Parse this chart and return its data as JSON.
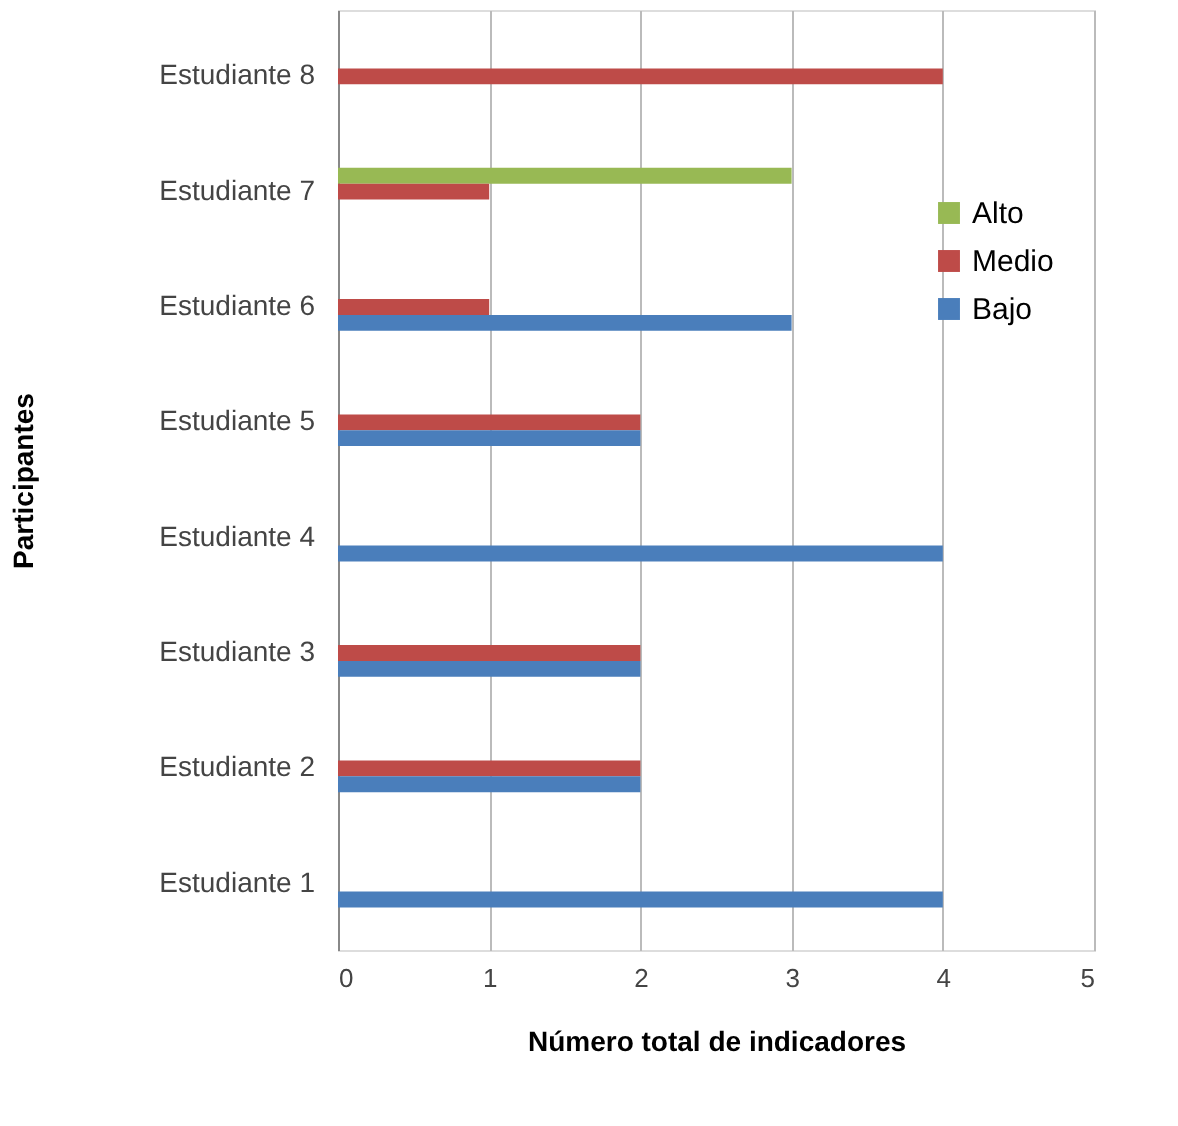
{
  "chart_data": {
    "type": "bar",
    "orientation": "horizontal",
    "xlabel": "Número total de indicadores",
    "ylabel": "Participantes",
    "categories": [
      "Estudiante 8",
      "Estudiante 7",
      "Estudiante 6",
      "Estudiante 5",
      "Estudiante 4",
      "Estudiante 3",
      "Estudiante 2",
      "Estudiante 1"
    ],
    "series": [
      {
        "name": "Alto",
        "color": "#98b954",
        "values": [
          null,
          3,
          null,
          null,
          null,
          null,
          null,
          null
        ]
      },
      {
        "name": "Medio",
        "color": "#be4b48",
        "values": [
          4,
          1,
          1,
          2,
          null,
          2,
          2,
          null
        ]
      },
      {
        "name": "Bajo",
        "color": "#4a7ebb",
        "values": [
          null,
          null,
          3,
          2,
          4,
          2,
          2,
          4
        ]
      }
    ],
    "xlim": [
      0,
      5
    ],
    "xticks": [
      0,
      1,
      2,
      3,
      4,
      5
    ],
    "grid": "x",
    "legend": "right"
  }
}
